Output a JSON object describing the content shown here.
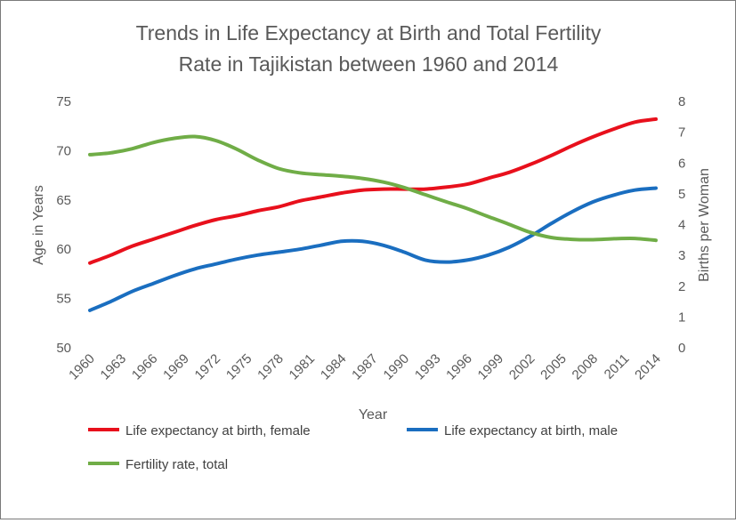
{
  "chart_data": {
    "type": "line",
    "title_line1": "Trends in Life Expectancy at Birth and Total Fertility",
    "title_line2": "Rate in Tajikistan between 1960 and 2014",
    "xlabel": "Year",
    "ylabel_left": "Age in Years",
    "ylabel_right": "Births per Woman",
    "ylim_left": [
      50,
      75
    ],
    "ylim_right": [
      0,
      8
    ],
    "yticks_left": [
      50,
      55,
      60,
      65,
      70,
      75
    ],
    "yticks_right": [
      0,
      1,
      2,
      3,
      4,
      5,
      6,
      7,
      8
    ],
    "xticks": [
      "1960",
      "1963",
      "1966",
      "1969",
      "1972",
      "1975",
      "1978",
      "1981",
      "1984",
      "1987",
      "1990",
      "1993",
      "1996",
      "1999",
      "2002",
      "2005",
      "2008",
      "2011",
      "2014"
    ],
    "grid": false,
    "legend_position": "bottom",
    "x": [
      1960,
      1962,
      1964,
      1966,
      1968,
      1970,
      1972,
      1974,
      1976,
      1978,
      1980,
      1982,
      1984,
      1986,
      1988,
      1990,
      1992,
      1994,
      1996,
      1998,
      2000,
      2002,
      2004,
      2006,
      2008,
      2010,
      2012,
      2014
    ],
    "series": [
      {
        "name": "Life expectancy at birth, female",
        "color": "#e8101c",
        "axis": "left",
        "values": [
          58.6,
          59.4,
          60.3,
          61.0,
          61.7,
          62.4,
          63.0,
          63.4,
          63.9,
          64.3,
          64.9,
          65.3,
          65.7,
          66.0,
          66.1,
          66.1,
          66.1,
          66.3,
          66.6,
          67.2,
          67.8,
          68.6,
          69.5,
          70.5,
          71.4,
          72.2,
          72.9,
          73.2
        ]
      },
      {
        "name": "Life expectancy at birth, male",
        "color": "#1a6ec0",
        "axis": "left",
        "values": [
          53.8,
          54.7,
          55.7,
          56.5,
          57.3,
          58.0,
          58.5,
          59.0,
          59.4,
          59.7,
          60.0,
          60.4,
          60.8,
          60.8,
          60.4,
          59.7,
          58.9,
          58.7,
          58.9,
          59.4,
          60.2,
          61.3,
          62.6,
          63.8,
          64.8,
          65.5,
          66.0,
          66.2
        ]
      },
      {
        "name": "Fertility rate, total",
        "color": "#70ad47",
        "axis": "right",
        "values": [
          6.27,
          6.33,
          6.46,
          6.66,
          6.8,
          6.86,
          6.73,
          6.45,
          6.1,
          5.82,
          5.68,
          5.62,
          5.57,
          5.5,
          5.38,
          5.2,
          4.97,
          4.74,
          4.52,
          4.26,
          4.01,
          3.75,
          3.58,
          3.52,
          3.51,
          3.54,
          3.55,
          3.49
        ]
      }
    ]
  }
}
